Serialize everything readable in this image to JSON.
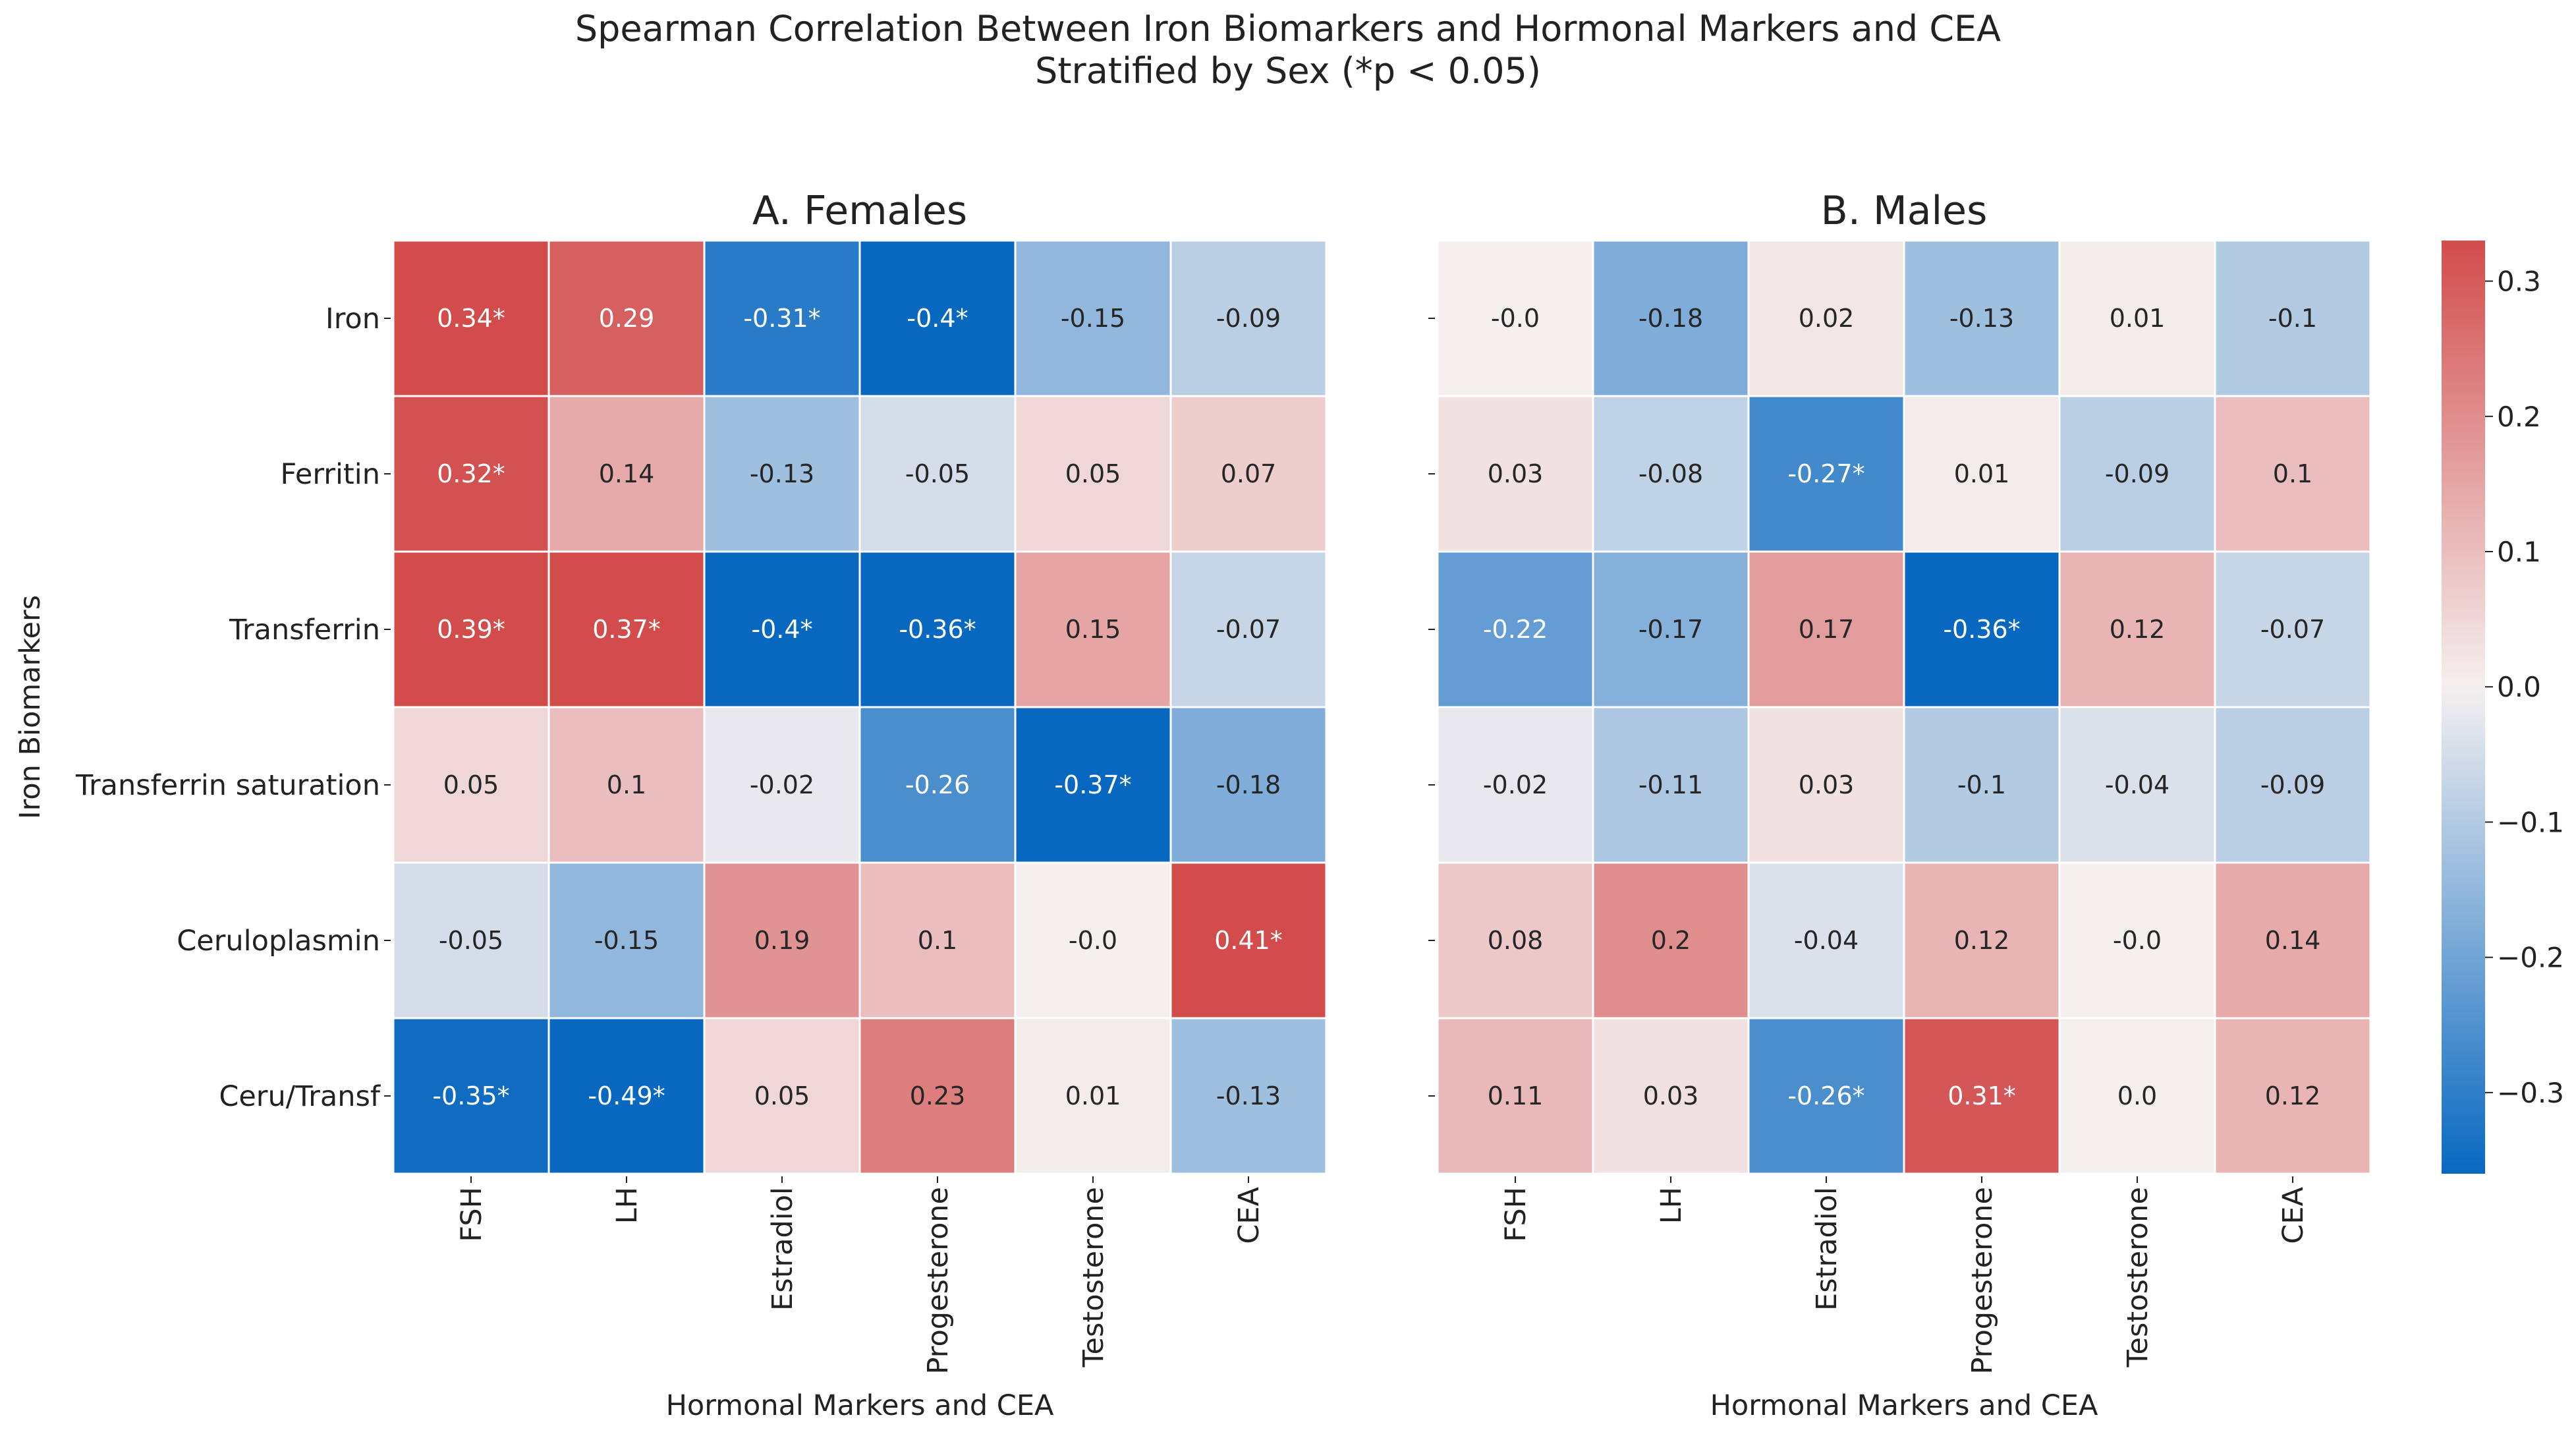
{
  "title": {
    "line1": "Spearman Correlation Between Iron Biomarkers and Hormonal Markers and CEA",
    "line2": "Stratified by Sex (*p < 0.05)"
  },
  "chart_data": [
    {
      "type": "heatmap",
      "title": "A. Females",
      "xlabel": "Hormonal Markers and CEA",
      "ylabel": "Iron Biomarkers",
      "columns": [
        "FSH",
        "LH",
        "Estradiol",
        "Progesterone",
        "Testosterone",
        "CEA"
      ],
      "rows": [
        "Iron",
        "Ferritin",
        "Transferrin",
        "Transferrin saturation",
        "Ceruloplasmin",
        "Ceru/Transf"
      ],
      "values": [
        [
          0.34,
          0.29,
          -0.31,
          -0.4,
          -0.15,
          -0.09
        ],
        [
          0.32,
          0.14,
          -0.13,
          -0.05,
          0.05,
          0.07
        ],
        [
          0.39,
          0.37,
          -0.4,
          -0.36,
          0.15,
          -0.07
        ],
        [
          0.05,
          0.1,
          -0.02,
          -0.26,
          -0.37,
          -0.18
        ],
        [
          -0.05,
          -0.15,
          0.19,
          0.1,
          -0.0,
          0.41
        ],
        [
          -0.35,
          -0.49,
          0.05,
          0.23,
          0.01,
          -0.13
        ]
      ],
      "labels": [
        [
          "0.34*",
          "0.29",
          "-0.31*",
          "-0.4*",
          "-0.15",
          "-0.09"
        ],
        [
          "0.32*",
          "0.14",
          "-0.13",
          "-0.05",
          "0.05",
          "0.07"
        ],
        [
          "0.39*",
          "0.37*",
          "-0.4*",
          "-0.36*",
          "0.15",
          "-0.07"
        ],
        [
          "0.05",
          "0.1",
          "-0.02",
          "-0.26",
          "-0.37*",
          "-0.18"
        ],
        [
          "-0.05",
          "-0.15",
          "0.19",
          "0.1",
          "-0.0",
          "0.41*"
        ],
        [
          "-0.35*",
          "-0.49*",
          "0.05",
          "0.23",
          "0.01",
          "-0.13"
        ]
      ]
    },
    {
      "type": "heatmap",
      "title": "B. Males",
      "xlabel": "Hormonal Markers and CEA",
      "ylabel": "",
      "columns": [
        "FSH",
        "LH",
        "Estradiol",
        "Progesterone",
        "Testosterone",
        "CEA"
      ],
      "rows": [
        "Iron",
        "Ferritin",
        "Transferrin",
        "Transferrin saturation",
        "Ceruloplasmin",
        "Ceru/Transf"
      ],
      "values": [
        [
          -0.0,
          -0.18,
          0.02,
          -0.13,
          0.01,
          -0.1
        ],
        [
          0.03,
          -0.08,
          -0.27,
          0.01,
          -0.09,
          0.1
        ],
        [
          -0.22,
          -0.17,
          0.17,
          -0.36,
          0.12,
          -0.07
        ],
        [
          -0.02,
          -0.11,
          0.03,
          -0.1,
          -0.04,
          -0.09
        ],
        [
          0.08,
          0.2,
          -0.04,
          0.12,
          -0.0,
          0.14
        ],
        [
          0.11,
          0.03,
          -0.26,
          0.31,
          0.0,
          0.12
        ]
      ],
      "labels": [
        [
          "-0.0",
          "-0.18",
          "0.02",
          "-0.13",
          "0.01",
          "-0.1"
        ],
        [
          "0.03",
          "-0.08",
          "-0.27*",
          "0.01",
          "-0.09",
          "0.1"
        ],
        [
          "-0.22",
          "-0.17",
          "0.17",
          "-0.36*",
          "0.12",
          "-0.07"
        ],
        [
          "-0.02",
          "-0.11",
          "0.03",
          "-0.1",
          "-0.04",
          "-0.09"
        ],
        [
          "0.08",
          "0.2",
          "-0.04",
          "0.12",
          "-0.0",
          "0.14"
        ],
        [
          "0.11",
          "0.03",
          "-0.26*",
          "0.31*",
          "0.0",
          "0.12"
        ]
      ]
    }
  ],
  "colorbar": {
    "vmin": -0.36,
    "vmax": 0.33,
    "ticks": [
      0.3,
      0.2,
      0.1,
      0.0,
      -0.1,
      -0.2,
      -0.3
    ],
    "tick_labels": [
      "0.3",
      "0.2",
      "0.1",
      "0.0",
      "−0.1",
      "−0.2",
      "−0.3"
    ],
    "colors": {
      "negative": "#0868c0",
      "neutral": "#f5f0f0",
      "positive": "#d24c4c"
    }
  }
}
